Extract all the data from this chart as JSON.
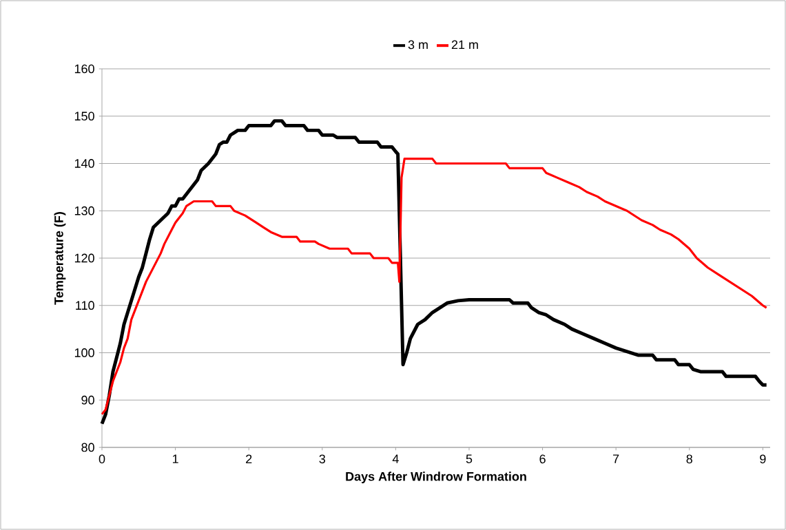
{
  "chart_data": {
    "type": "line",
    "xlabel": "Days After Windrow Formation",
    "ylabel": "Temperature (F)",
    "xlim": [
      0,
      9.1
    ],
    "xticks": [
      0,
      1,
      2,
      3,
      4,
      5,
      6,
      7,
      8,
      9
    ],
    "ylim": [
      80,
      160
    ],
    "yticks": [
      80,
      90,
      100,
      110,
      120,
      130,
      140,
      150,
      160
    ],
    "grid": "y",
    "legend": "top",
    "marker": "none",
    "line_style": "solid",
    "series": [
      {
        "name": "3 m",
        "color": "#000000",
        "x": [
          0,
          0.05,
          0.1,
          0.15,
          0.2,
          0.25,
          0.3,
          0.4,
          0.5,
          0.55,
          0.6,
          0.65,
          0.7,
          0.8,
          0.9,
          0.95,
          1.0,
          1.05,
          1.1,
          1.2,
          1.3,
          1.35,
          1.45,
          1.55,
          1.6,
          1.65,
          1.7,
          1.75,
          1.8,
          1.85,
          1.95,
          2.0,
          2.3,
          2.35,
          2.45,
          2.5,
          2.75,
          2.8,
          2.95,
          3.0,
          3.15,
          3.2,
          3.45,
          3.5,
          3.75,
          3.8,
          3.95,
          4.0,
          4.03,
          4.1,
          4.15,
          4.2,
          4.3,
          4.4,
          4.5,
          4.6,
          4.7,
          4.85,
          5.0,
          5.55,
          5.6,
          5.8,
          5.85,
          5.95,
          6.05,
          6.15,
          6.3,
          6.4,
          6.55,
          6.7,
          6.85,
          7.0,
          7.1,
          7.2,
          7.3,
          7.5,
          7.55,
          7.8,
          7.85,
          8.0,
          8.05,
          8.15,
          8.45,
          8.5,
          8.9,
          8.95,
          9.0,
          9.05
        ],
        "values": [
          85,
          87,
          91,
          96,
          99,
          102,
          106,
          111,
          116,
          118,
          121,
          124,
          126.5,
          128,
          129.5,
          131,
          131,
          132.5,
          132.5,
          134.5,
          136.5,
          138.5,
          140,
          142,
          144,
          144.5,
          144.5,
          146,
          146.5,
          147,
          147,
          148,
          148,
          149,
          149,
          148,
          148,
          147,
          147,
          146,
          146,
          145.5,
          145.5,
          144.5,
          144.5,
          143.5,
          143.5,
          142.5,
          142,
          97.5,
          100,
          103,
          106,
          107,
          108.5,
          109.5,
          110.5,
          111,
          111.2,
          111.2,
          110.5,
          110.5,
          109.5,
          108.5,
          108,
          107,
          106,
          105,
          104,
          103,
          102,
          101,
          100.5,
          100,
          99.5,
          99.5,
          98.5,
          98.5,
          97.5,
          97.5,
          96.5,
          96,
          96,
          95,
          95,
          94,
          93.2,
          93.2
        ]
      },
      {
        "name": "21 m",
        "color": "#ff0000",
        "x": [
          0,
          0.05,
          0.1,
          0.15,
          0.25,
          0.3,
          0.35,
          0.4,
          0.5,
          0.6,
          0.7,
          0.8,
          0.85,
          0.95,
          1.0,
          1.1,
          1.15,
          1.25,
          1.5,
          1.55,
          1.75,
          1.8,
          1.95,
          2.1,
          2.2,
          2.3,
          2.45,
          2.65,
          2.7,
          2.9,
          2.95,
          3.1,
          3.35,
          3.4,
          3.65,
          3.7,
          3.9,
          3.95,
          4.03,
          4.05,
          4.08,
          4.12,
          4.5,
          4.55,
          5.5,
          5.55,
          6.0,
          6.05,
          6.2,
          6.35,
          6.5,
          6.6,
          6.75,
          6.85,
          7.0,
          7.15,
          7.25,
          7.35,
          7.5,
          7.6,
          7.75,
          7.85,
          8.0,
          8.1,
          8.25,
          8.4,
          8.55,
          8.7,
          8.85,
          9.0,
          9.05
        ],
        "values": [
          87,
          88,
          91,
          94,
          98,
          101,
          103,
          107,
          111,
          115,
          118,
          121,
          123,
          126,
          127.5,
          129.5,
          131,
          132,
          132,
          131,
          131,
          130,
          129,
          127.5,
          126.5,
          125.5,
          124.5,
          124.5,
          123.5,
          123.5,
          123,
          122,
          122,
          121,
          121,
          120,
          120,
          119,
          119,
          115,
          137,
          141,
          141,
          140,
          140,
          139,
          139,
          138,
          137,
          136,
          135,
          134,
          133,
          132,
          131,
          130,
          129,
          128,
          127,
          126,
          125,
          124,
          122,
          120,
          118,
          116.5,
          115,
          113.5,
          112,
          110,
          109.5
        ]
      }
    ]
  }
}
